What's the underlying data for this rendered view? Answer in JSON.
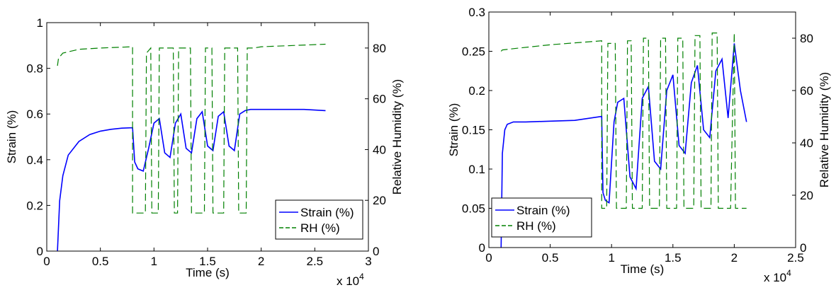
{
  "chart_data": [
    {
      "type": "line",
      "xlabel": "Time (s)",
      "ylabel": "Strain (%)",
      "y2label": "Relative Humidity (%)",
      "x_multiplier": "x 10",
      "x_exponent": "4",
      "xlim": [
        0,
        3
      ],
      "ylim": [
        0,
        1
      ],
      "y2lim": [
        0,
        90
      ],
      "xticks": [
        "0",
        "0.5",
        "1",
        "1.5",
        "2",
        "2.5",
        "3"
      ],
      "yticks": [
        "0",
        "0.2",
        "0.4",
        "0.6",
        "0.8",
        "1"
      ],
      "y2ticks": [
        "0",
        "20",
        "40",
        "60",
        "80"
      ],
      "legend": {
        "position": "bottom-right",
        "entries": [
          "Strain (%)",
          "RH (%)"
        ]
      },
      "series": [
        {
          "name": "Strain (%)",
          "color": "#0000ff",
          "axis": "left",
          "x": [
            0.1,
            0.12,
            0.15,
            0.2,
            0.3,
            0.4,
            0.5,
            0.6,
            0.7,
            0.8,
            0.82,
            0.85,
            0.9,
            0.95,
            1.0,
            1.05,
            1.1,
            1.15,
            1.2,
            1.25,
            1.3,
            1.35,
            1.4,
            1.45,
            1.5,
            1.55,
            1.6,
            1.65,
            1.7,
            1.75,
            1.8,
            1.85,
            1.9,
            1.95,
            2.0,
            2.2,
            2.4,
            2.6
          ],
          "y": [
            0.0,
            0.22,
            0.33,
            0.42,
            0.48,
            0.51,
            0.525,
            0.533,
            0.538,
            0.54,
            0.39,
            0.36,
            0.35,
            0.45,
            0.56,
            0.58,
            0.43,
            0.41,
            0.56,
            0.6,
            0.45,
            0.43,
            0.58,
            0.61,
            0.46,
            0.44,
            0.59,
            0.61,
            0.46,
            0.44,
            0.6,
            0.615,
            0.62,
            0.62,
            0.62,
            0.62,
            0.62,
            0.615
          ]
        },
        {
          "name": "RH (%)",
          "color": "#008000",
          "axis": "right",
          "x": [
            0.1,
            0.11,
            0.15,
            0.3,
            0.5,
            0.8,
            0.8,
            0.92,
            0.93,
            0.97,
            0.98,
            1.04,
            1.05,
            1.18,
            1.19,
            1.22,
            1.23,
            1.34,
            1.35,
            1.47,
            1.48,
            1.54,
            1.55,
            1.65,
            1.66,
            1.78,
            1.79,
            1.86,
            1.87,
            1.93,
            2.0,
            2.3,
            2.6
          ],
          "y": [
            73,
            76,
            78,
            79.5,
            80,
            80.5,
            15,
            15,
            78,
            80,
            15,
            15,
            80,
            80,
            15,
            15,
            80,
            80,
            15,
            15,
            80,
            80,
            15,
            15,
            80,
            80,
            15,
            15,
            80,
            80,
            80.5,
            81,
            81.5
          ]
        }
      ]
    },
    {
      "type": "line",
      "xlabel": "Time (s)",
      "ylabel": "Strain (%)",
      "y2label": "Relative Humidity (%)",
      "x_multiplier": "x 10",
      "x_exponent": "4",
      "xlim": [
        0,
        2.5
      ],
      "ylim": [
        0,
        0.3
      ],
      "y2lim": [
        0,
        90
      ],
      "xticks": [
        "0",
        "0.5",
        "1",
        "1.5",
        "2",
        "2.5"
      ],
      "yticks": [
        "0",
        "0.05",
        "0.1",
        "0.15",
        "0.2",
        "0.25",
        "0.3"
      ],
      "y2ticks": [
        "0",
        "20",
        "40",
        "60",
        "80"
      ],
      "legend": {
        "position": "bottom-left-center",
        "entries": [
          "Strain (%)",
          "RH (%)"
        ]
      },
      "series": [
        {
          "name": "Strain (%)",
          "color": "#0000ff",
          "axis": "left",
          "x": [
            0.1,
            0.11,
            0.13,
            0.15,
            0.2,
            0.3,
            0.5,
            0.7,
            0.92,
            0.93,
            0.95,
            0.98,
            1.02,
            1.05,
            1.1,
            1.15,
            1.2,
            1.25,
            1.3,
            1.35,
            1.4,
            1.45,
            1.5,
            1.55,
            1.6,
            1.65,
            1.7,
            1.75,
            1.8,
            1.85,
            1.9,
            1.95,
            2.0,
            2.05,
            2.1
          ],
          "y": [
            0.0,
            0.12,
            0.15,
            0.157,
            0.16,
            0.16,
            0.161,
            0.162,
            0.167,
            0.07,
            0.06,
            0.057,
            0.16,
            0.185,
            0.19,
            0.09,
            0.075,
            0.19,
            0.205,
            0.11,
            0.1,
            0.2,
            0.22,
            0.13,
            0.12,
            0.21,
            0.232,
            0.15,
            0.14,
            0.225,
            0.24,
            0.165,
            0.26,
            0.2,
            0.16
          ]
        },
        {
          "name": "RH (%)",
          "color": "#008000",
          "axis": "right",
          "x": [
            0.1,
            0.11,
            0.2,
            0.5,
            0.92,
            0.92,
            0.96,
            0.97,
            1.03,
            1.04,
            1.12,
            1.13,
            1.16,
            1.17,
            1.25,
            1.26,
            1.3,
            1.31,
            1.39,
            1.4,
            1.44,
            1.45,
            1.53,
            1.54,
            1.58,
            1.59,
            1.67,
            1.68,
            1.72,
            1.73,
            1.81,
            1.82,
            1.86,
            1.87,
            1.97,
            2.0,
            2.01,
            2.1
          ],
          "y": [
            75,
            75.5,
            76,
            77.5,
            79,
            15,
            15,
            78,
            78,
            15,
            15,
            79,
            79,
            15,
            15,
            80,
            80,
            15,
            15,
            80,
            80,
            15,
            15,
            80,
            80,
            15,
            15,
            81,
            81,
            15,
            15,
            82,
            82,
            15,
            15,
            82,
            15,
            15
          ]
        }
      ]
    }
  ]
}
